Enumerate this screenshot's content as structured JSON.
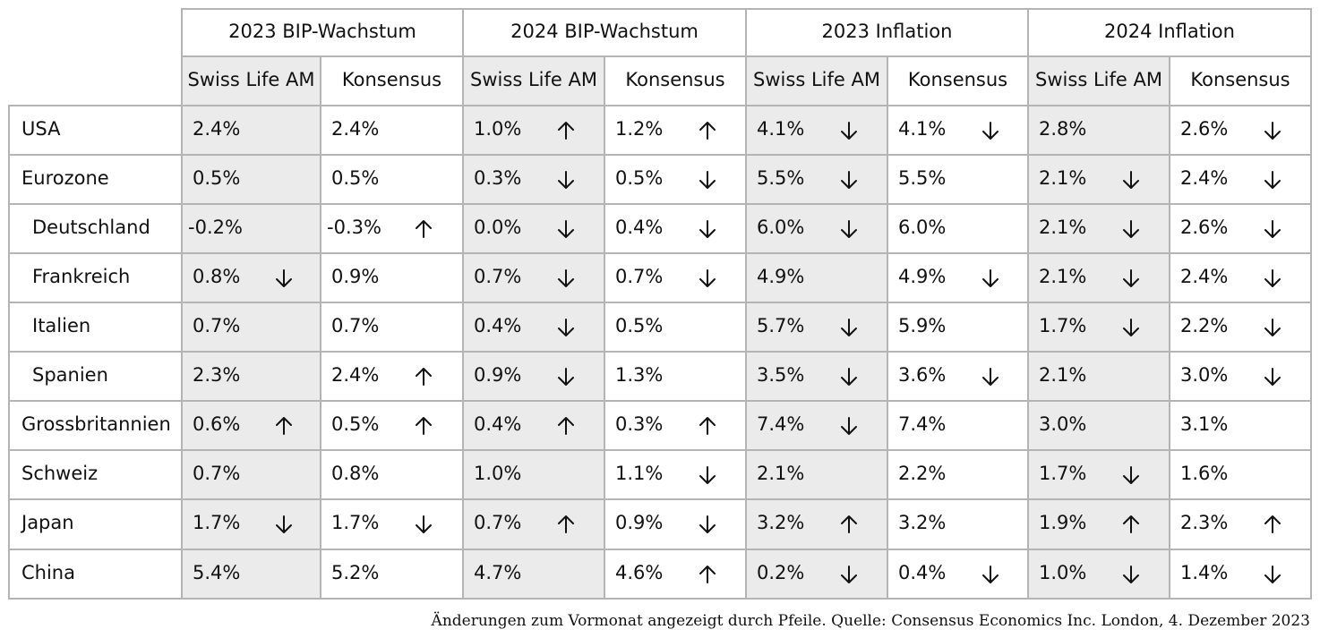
{
  "chart_data": {
    "type": "table",
    "groups": [
      "2023 BIP-Wachstum",
      "2024 BIP-Wachstum",
      "2023 Inflation",
      "2024 Inflation"
    ],
    "subheaders": [
      "Swiss Life AM",
      "Konsensus"
    ],
    "rows": [
      {
        "label": "USA",
        "indent": false,
        "cells": [
          {
            "v": "2.4%",
            "a": ""
          },
          {
            "v": "2.4%",
            "a": ""
          },
          {
            "v": "1.0%",
            "a": "up"
          },
          {
            "v": "1.2%",
            "a": "up"
          },
          {
            "v": "4.1%",
            "a": "down"
          },
          {
            "v": "4.1%",
            "a": "down"
          },
          {
            "v": "2.8%",
            "a": ""
          },
          {
            "v": "2.6%",
            "a": "down"
          }
        ]
      },
      {
        "label": "Eurozone",
        "indent": false,
        "cells": [
          {
            "v": "0.5%",
            "a": ""
          },
          {
            "v": "0.5%",
            "a": ""
          },
          {
            "v": "0.3%",
            "a": "down"
          },
          {
            "v": "0.5%",
            "a": "down"
          },
          {
            "v": "5.5%",
            "a": "down"
          },
          {
            "v": "5.5%",
            "a": ""
          },
          {
            "v": "2.1%",
            "a": "down"
          },
          {
            "v": "2.4%",
            "a": "down"
          }
        ]
      },
      {
        "label": "Deutschland",
        "indent": true,
        "cells": [
          {
            "v": "-0.2%",
            "a": ""
          },
          {
            "v": "-0.3%",
            "a": "up"
          },
          {
            "v": "0.0%",
            "a": "down"
          },
          {
            "v": "0.4%",
            "a": "down"
          },
          {
            "v": "6.0%",
            "a": "down"
          },
          {
            "v": "6.0%",
            "a": ""
          },
          {
            "v": "2.1%",
            "a": "down"
          },
          {
            "v": "2.6%",
            "a": "down"
          }
        ]
      },
      {
        "label": "Frankreich",
        "indent": true,
        "cells": [
          {
            "v": "0.8%",
            "a": "down"
          },
          {
            "v": "0.9%",
            "a": ""
          },
          {
            "v": "0.7%",
            "a": "down"
          },
          {
            "v": "0.7%",
            "a": "down"
          },
          {
            "v": "4.9%",
            "a": ""
          },
          {
            "v": "4.9%",
            "a": "down"
          },
          {
            "v": "2.1%",
            "a": "down"
          },
          {
            "v": "2.4%",
            "a": "down"
          }
        ]
      },
      {
        "label": "Italien",
        "indent": true,
        "cells": [
          {
            "v": "0.7%",
            "a": ""
          },
          {
            "v": "0.7%",
            "a": ""
          },
          {
            "v": "0.4%",
            "a": "down"
          },
          {
            "v": "0.5%",
            "a": ""
          },
          {
            "v": "5.7%",
            "a": "down"
          },
          {
            "v": "5.9%",
            "a": ""
          },
          {
            "v": "1.7%",
            "a": "down"
          },
          {
            "v": "2.2%",
            "a": "down"
          }
        ]
      },
      {
        "label": "Spanien",
        "indent": true,
        "cells": [
          {
            "v": "2.3%",
            "a": ""
          },
          {
            "v": "2.4%",
            "a": "up"
          },
          {
            "v": "0.9%",
            "a": "down"
          },
          {
            "v": "1.3%",
            "a": ""
          },
          {
            "v": "3.5%",
            "a": "down"
          },
          {
            "v": "3.6%",
            "a": "down"
          },
          {
            "v": "2.1%",
            "a": ""
          },
          {
            "v": "3.0%",
            "a": "down"
          }
        ]
      },
      {
        "label": "Grossbritannien",
        "indent": false,
        "cells": [
          {
            "v": "0.6%",
            "a": "up"
          },
          {
            "v": "0.5%",
            "a": "up"
          },
          {
            "v": "0.4%",
            "a": "up"
          },
          {
            "v": "0.3%",
            "a": "up"
          },
          {
            "v": "7.4%",
            "a": "down"
          },
          {
            "v": "7.4%",
            "a": ""
          },
          {
            "v": "3.0%",
            "a": ""
          },
          {
            "v": "3.1%",
            "a": ""
          }
        ]
      },
      {
        "label": "Schweiz",
        "indent": false,
        "cells": [
          {
            "v": "0.7%",
            "a": ""
          },
          {
            "v": "0.8%",
            "a": ""
          },
          {
            "v": "1.0%",
            "a": ""
          },
          {
            "v": "1.1%",
            "a": "down"
          },
          {
            "v": "2.1%",
            "a": ""
          },
          {
            "v": "2.2%",
            "a": ""
          },
          {
            "v": "1.7%",
            "a": "down"
          },
          {
            "v": "1.6%",
            "a": ""
          }
        ]
      },
      {
        "label": "Japan",
        "indent": false,
        "cells": [
          {
            "v": "1.7%",
            "a": "down"
          },
          {
            "v": "1.7%",
            "a": "down"
          },
          {
            "v": "0.7%",
            "a": "up"
          },
          {
            "v": "0.9%",
            "a": "down"
          },
          {
            "v": "3.2%",
            "a": "up"
          },
          {
            "v": "3.2%",
            "a": ""
          },
          {
            "v": "1.9%",
            "a": "up"
          },
          {
            "v": "2.3%",
            "a": "up"
          }
        ]
      },
      {
        "label": "China",
        "indent": false,
        "cells": [
          {
            "v": "5.4%",
            "a": ""
          },
          {
            "v": "5.2%",
            "a": ""
          },
          {
            "v": "4.7%",
            "a": ""
          },
          {
            "v": "4.6%",
            "a": "up"
          },
          {
            "v": "0.2%",
            "a": "down"
          },
          {
            "v": "0.4%",
            "a": "down"
          },
          {
            "v": "1.0%",
            "a": "down"
          },
          {
            "v": "1.4%",
            "a": "down"
          }
        ]
      }
    ]
  },
  "footnote": "Änderungen zum Vormonat angezeigt durch Pfeile. Quelle: Consensus Economics Inc. London, 4. Dezember 2023",
  "colors": {
    "border": "#b4b4b4",
    "shade": "#ebebeb",
    "text": "#111111"
  }
}
